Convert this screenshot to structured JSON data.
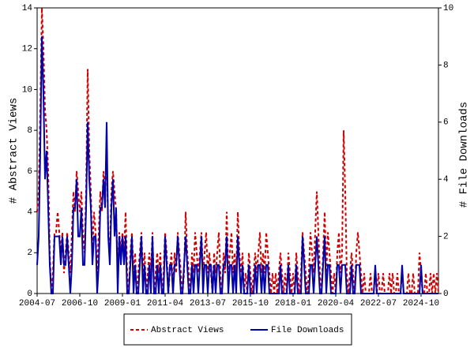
{
  "chart_data": {
    "type": "line",
    "y_label": "# Abstract Views",
    "y2_label": "# File Downloads",
    "x": [
      "2004-07",
      "2004-08",
      "2004-09",
      "2004-10",
      "2004-11",
      "2004-12",
      "2005-01",
      "2005-02",
      "2005-03",
      "2005-04",
      "2005-05",
      "2005-06",
      "2005-07",
      "2005-08",
      "2005-09",
      "2005-10",
      "2005-11",
      "2005-12",
      "2006-01",
      "2006-02",
      "2006-03",
      "2006-04",
      "2006-05",
      "2006-06",
      "2006-07",
      "2006-08",
      "2006-09",
      "2006-10",
      "2006-11",
      "2006-12",
      "2007-01",
      "2007-02",
      "2007-03",
      "2007-04",
      "2007-05",
      "2007-06",
      "2007-07",
      "2007-08",
      "2007-09",
      "2007-10",
      "2007-11",
      "2007-12",
      "2008-01",
      "2008-02",
      "2008-03",
      "2008-04",
      "2008-05",
      "2008-06",
      "2008-07",
      "2008-08",
      "2008-09",
      "2008-10",
      "2008-11",
      "2008-12",
      "2009-01",
      "2009-02",
      "2009-03",
      "2009-04",
      "2009-05",
      "2009-06",
      "2009-07",
      "2009-08",
      "2009-09",
      "2009-10",
      "2009-11",
      "2009-12",
      "2010-01",
      "2010-02",
      "2010-03",
      "2010-04",
      "2010-05",
      "2010-06",
      "2010-07",
      "2010-08",
      "2010-09",
      "2010-10",
      "2010-11",
      "2010-12",
      "2011-01",
      "2011-02",
      "2011-03",
      "2011-04",
      "2011-05",
      "2011-06",
      "2011-07",
      "2011-08",
      "2011-09",
      "2011-10",
      "2011-11",
      "2011-12",
      "2012-01",
      "2012-02",
      "2012-03",
      "2012-04",
      "2012-05",
      "2012-06",
      "2012-07",
      "2012-08",
      "2012-09",
      "2012-10",
      "2012-11",
      "2012-12",
      "2013-01",
      "2013-02",
      "2013-03",
      "2013-04",
      "2013-05",
      "2013-06",
      "2013-07",
      "2013-08",
      "2013-09",
      "2013-10",
      "2013-11",
      "2013-12",
      "2014-01",
      "2014-02",
      "2014-03",
      "2014-04",
      "2014-05",
      "2014-06",
      "2014-07",
      "2014-08",
      "2014-09",
      "2014-10",
      "2014-11",
      "2014-12",
      "2015-01",
      "2015-02",
      "2015-03",
      "2015-04",
      "2015-05",
      "2015-06",
      "2015-07",
      "2015-08",
      "2015-09",
      "2015-10",
      "2015-11",
      "2015-12",
      "2016-01",
      "2016-02",
      "2016-03",
      "2016-04",
      "2016-05",
      "2016-06",
      "2016-07",
      "2016-08",
      "2016-09",
      "2016-10",
      "2016-11",
      "2016-12",
      "2017-01",
      "2017-02",
      "2017-03",
      "2017-04",
      "2017-05",
      "2017-06",
      "2017-07",
      "2017-08",
      "2017-09",
      "2017-10",
      "2017-11",
      "2017-12",
      "2018-01",
      "2018-02",
      "2018-03",
      "2018-04",
      "2018-05",
      "2018-06",
      "2018-07",
      "2018-08",
      "2018-09",
      "2018-10",
      "2018-11",
      "2018-12",
      "2019-01",
      "2019-02",
      "2019-03",
      "2019-04",
      "2019-05",
      "2019-06",
      "2019-07",
      "2019-08",
      "2019-09",
      "2019-10",
      "2019-11",
      "2019-12",
      "2020-01",
      "2020-02",
      "2020-03",
      "2020-04",
      "2020-05",
      "2020-06",
      "2020-07",
      "2020-08",
      "2020-09",
      "2020-10",
      "2020-11",
      "2020-12",
      "2021-01",
      "2021-02",
      "2021-03",
      "2021-04",
      "2021-05",
      "2021-06",
      "2021-07",
      "2021-08",
      "2021-09",
      "2021-10",
      "2021-11",
      "2021-12",
      "2022-01",
      "2022-02",
      "2022-03",
      "2022-04",
      "2022-05",
      "2022-06",
      "2022-07",
      "2022-08",
      "2022-09",
      "2022-10",
      "2022-11",
      "2022-12",
      "2023-01",
      "2023-02",
      "2023-03",
      "2023-04",
      "2023-05",
      "2023-06",
      "2023-07",
      "2023-08",
      "2023-09",
      "2023-10",
      "2023-11",
      "2023-12",
      "2024-01",
      "2024-02",
      "2024-03",
      "2024-04",
      "2024-05",
      "2024-06",
      "2024-07",
      "2024-08",
      "2024-09",
      "2024-10",
      "2024-11",
      "2024-12",
      "2025-01",
      "2025-02",
      "2025-03",
      "2025-04",
      "2025-05",
      "2025-06",
      "2025-07",
      "2025-08",
      "2025-09"
    ],
    "xticks": [
      "2004-07",
      "2006-10",
      "2009-01",
      "2011-04",
      "2013-07",
      "2015-10",
      "2018-01",
      "2020-04",
      "2022-07",
      "2024-10"
    ],
    "ylim": [
      0,
      14
    ],
    "yticks": [
      0,
      2,
      4,
      6,
      8,
      10,
      12,
      14
    ],
    "y2lim": [
      0,
      10
    ],
    "y2ticks": [
      0,
      2,
      4,
      6,
      8,
      10
    ],
    "legend": "bottom",
    "series": [
      {
        "name": "Abstract Views",
        "color": "#cc0000",
        "dash": true,
        "values": [
          4,
          5,
          9,
          14,
          12,
          9,
          8,
          6,
          2,
          0,
          1,
          3,
          3,
          4,
          3,
          2,
          3,
          1,
          2,
          3,
          2,
          1,
          3,
          5,
          4,
          6,
          5,
          4,
          5,
          3,
          2,
          5,
          11,
          7,
          5,
          2,
          4,
          3,
          1,
          3,
          5,
          4,
          6,
          5,
          7,
          3,
          2,
          5,
          6,
          5,
          4,
          1,
          3,
          2,
          3,
          2,
          4,
          1,
          0,
          2,
          3,
          1,
          2,
          0,
          1,
          2,
          3,
          1,
          2,
          0,
          1,
          2,
          1,
          3,
          0,
          1,
          2,
          1,
          2,
          0,
          1,
          3,
          2,
          0,
          1,
          2,
          0,
          2,
          1,
          3,
          2,
          1,
          0,
          1,
          4,
          2,
          1,
          0,
          2,
          1,
          3,
          2,
          1,
          2,
          3,
          1,
          2,
          3,
          1,
          2,
          1,
          0,
          2,
          1,
          2,
          3,
          1,
          0,
          2,
          1,
          4,
          1,
          2,
          3,
          1,
          2,
          1,
          4,
          2,
          1,
          2,
          0,
          1,
          0,
          2,
          1,
          0,
          1,
          2,
          1,
          2,
          3,
          1,
          2,
          1,
          3,
          2,
          1,
          0,
          1,
          0,
          1,
          0,
          1,
          2,
          1,
          0,
          1,
          0,
          2,
          1,
          0,
          1,
          0,
          2,
          1,
          0,
          1,
          3,
          2,
          1,
          0,
          1,
          3,
          2,
          1,
          3,
          5,
          3,
          1,
          0,
          2,
          4,
          1,
          3,
          2,
          1,
          0,
          1,
          0,
          2,
          3,
          1,
          2,
          8,
          5,
          1,
          0,
          1,
          2,
          1,
          0,
          2,
          3,
          2,
          1,
          0,
          1,
          0,
          0,
          0,
          1,
          0,
          0,
          1,
          0,
          1,
          0,
          0,
          1,
          0,
          0,
          0,
          1,
          0,
          1,
          0,
          0,
          1,
          0,
          0,
          1,
          0,
          0,
          0,
          1,
          0,
          0,
          1,
          0,
          0,
          0,
          2,
          1,
          0,
          0,
          1,
          0,
          0,
          1,
          0,
          1,
          0,
          1,
          0
        ]
      },
      {
        "name": "File Downloads",
        "color": "#0000aa",
        "dash": false,
        "axis": "y2",
        "values": [
          1,
          2,
          5,
          9,
          7,
          4,
          5,
          3,
          1,
          0,
          0,
          2,
          2,
          2,
          2,
          1,
          2,
          1,
          1,
          2,
          1,
          0,
          1,
          3,
          3,
          4,
          2,
          2,
          3,
          1,
          1,
          3,
          6,
          4,
          3,
          1,
          2,
          2,
          0,
          1,
          3,
          3,
          4,
          3,
          6,
          2,
          1,
          3,
          4,
          2,
          3,
          0,
          2,
          1,
          2,
          1,
          2,
          0,
          0,
          1,
          2,
          0,
          1,
          0,
          0,
          1,
          2,
          0,
          1,
          0,
          0,
          1,
          0,
          2,
          0,
          0,
          1,
          0,
          1,
          0,
          0,
          2,
          1,
          0,
          1,
          1,
          0,
          1,
          1,
          2,
          1,
          0,
          0,
          1,
          2,
          1,
          0,
          0,
          1,
          0,
          1,
          1,
          0,
          1,
          2,
          0,
          1,
          1,
          0,
          1,
          1,
          0,
          1,
          0,
          1,
          1,
          0,
          0,
          1,
          1,
          2,
          0,
          1,
          1,
          0,
          1,
          0,
          2,
          1,
          0,
          1,
          0,
          0,
          0,
          1,
          0,
          0,
          0,
          1,
          0,
          1,
          1,
          0,
          1,
          0,
          1,
          1,
          0,
          0,
          0,
          0,
          0,
          0,
          0,
          1,
          0,
          0,
          0,
          0,
          1,
          0,
          0,
          0,
          0,
          1,
          0,
          0,
          0,
          2,
          1,
          0,
          0,
          0,
          1,
          1,
          0,
          1,
          2,
          1,
          0,
          0,
          1,
          2,
          0,
          1,
          1,
          0,
          0,
          0,
          0,
          1,
          1,
          0,
          1,
          1,
          1,
          0,
          0,
          0,
          1,
          0,
          0,
          1,
          1,
          1,
          0,
          0,
          0,
          0,
          0,
          0,
          0,
          0,
          0,
          1,
          0,
          0,
          0,
          0,
          0,
          0,
          0,
          0,
          0,
          0,
          0,
          0,
          0,
          0,
          0,
          0,
          1,
          0,
          0,
          0,
          0,
          0,
          0,
          0,
          0,
          0,
          0,
          0,
          1,
          0,
          0,
          0,
          0,
          0,
          0,
          0,
          0,
          0,
          0,
          0
        ]
      }
    ]
  }
}
